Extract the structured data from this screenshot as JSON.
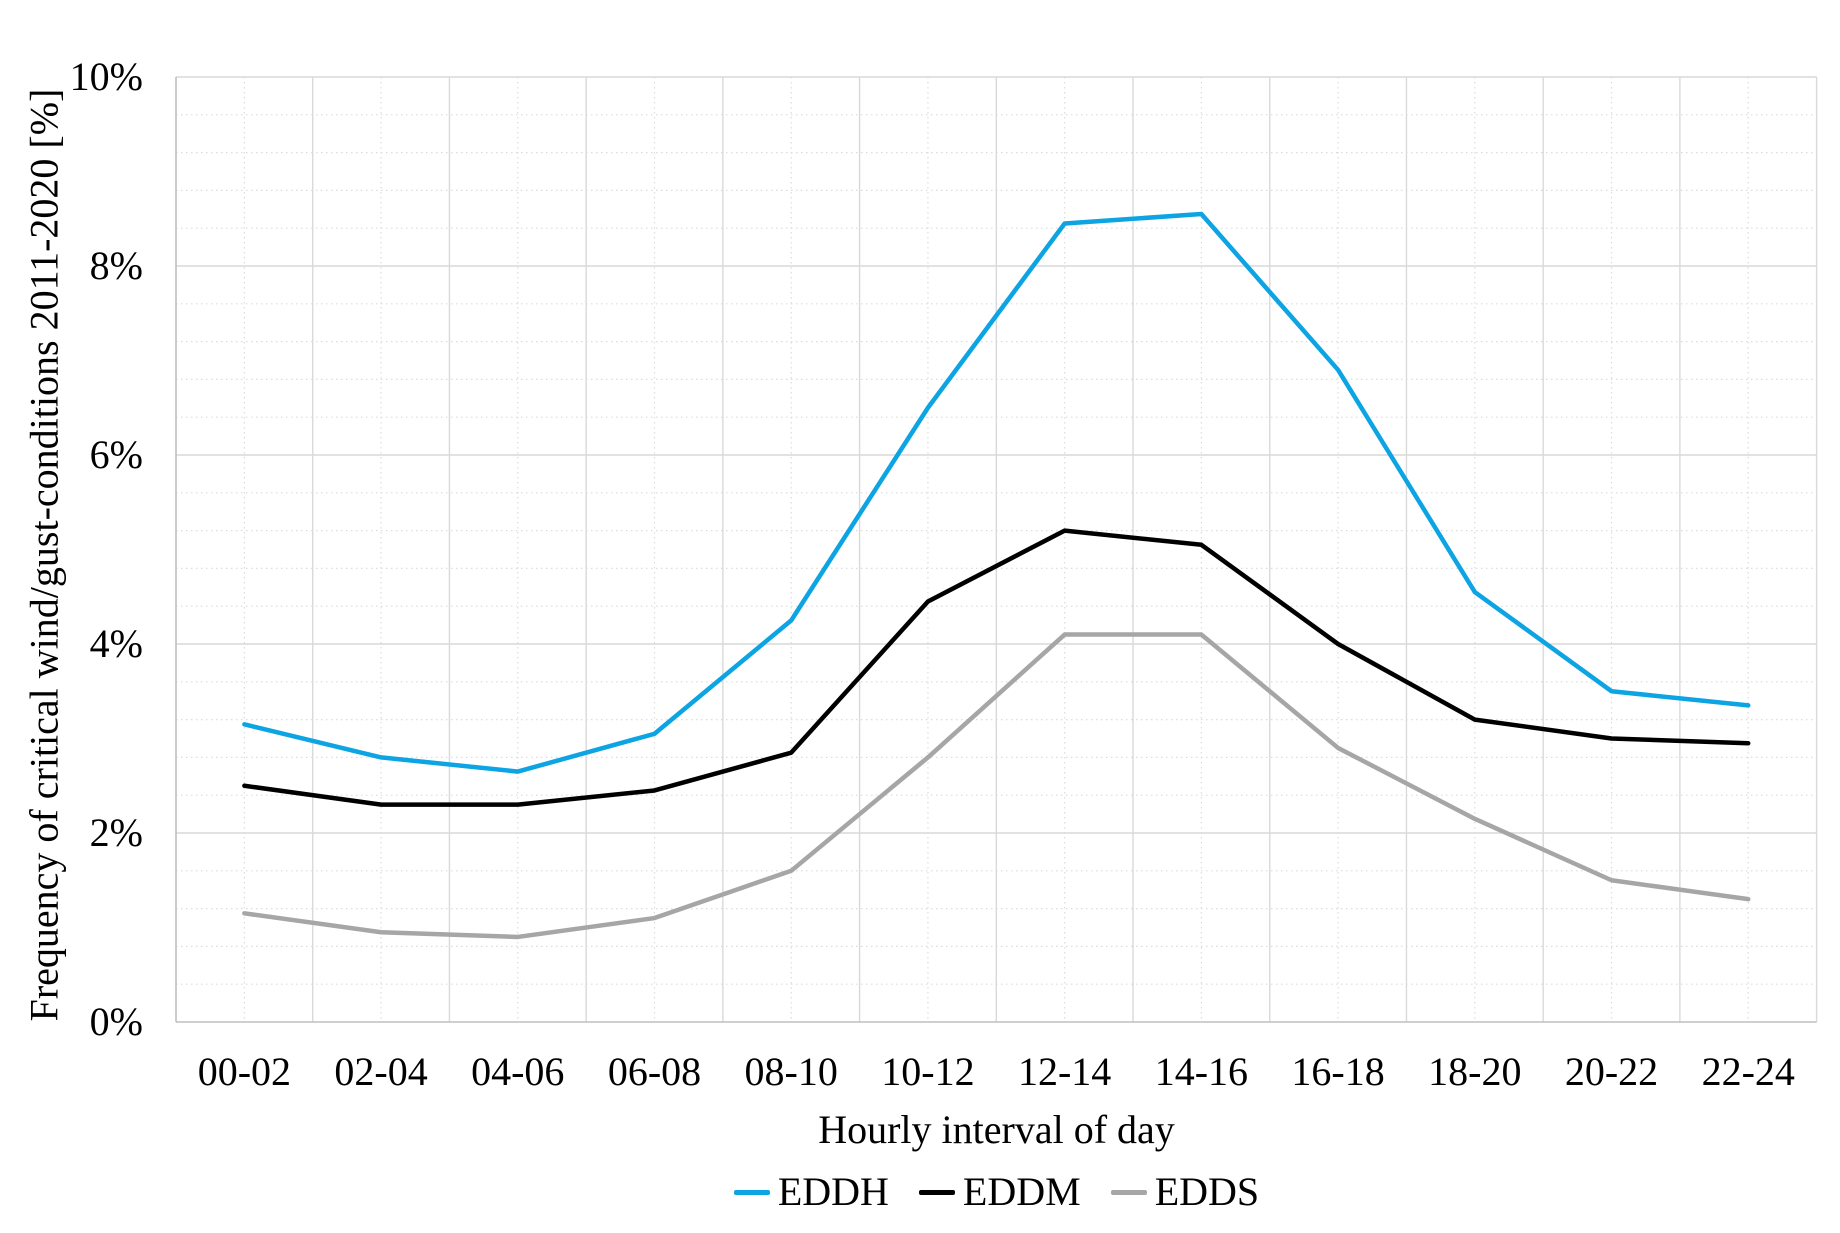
{
  "chart_data": {
    "type": "line",
    "title": "",
    "xlabel": "Hourly interval of day",
    "ylabel": "Frequency of critical wind/gust-conditions 2011-2020 [%]",
    "categories": [
      "00-02",
      "02-04",
      "04-06",
      "06-08",
      "08-10",
      "10-12",
      "12-14",
      "14-16",
      "16-18",
      "18-20",
      "20-22",
      "22-24"
    ],
    "series": [
      {
        "name": "EDDH",
        "color": "#0ca4e2",
        "values": [
          3.15,
          2.8,
          2.65,
          3.05,
          4.25,
          6.5,
          8.45,
          8.55,
          6.9,
          4.55,
          3.5,
          3.35
        ]
      },
      {
        "name": "EDDM",
        "color": "#000000",
        "values": [
          2.5,
          2.3,
          2.3,
          2.45,
          2.85,
          4.45,
          5.2,
          5.05,
          4.0,
          3.2,
          3.0,
          2.95
        ]
      },
      {
        "name": "EDDS",
        "color": "#a6a6a6",
        "values": [
          1.15,
          0.95,
          0.9,
          1.1,
          1.6,
          2.8,
          4.1,
          4.1,
          2.9,
          2.15,
          1.5,
          1.3
        ]
      }
    ],
    "y_ticks": [
      "0%",
      "2%",
      "4%",
      "6%",
      "8%",
      "10%"
    ],
    "ylim": [
      0,
      10
    ],
    "y_major_step": 2,
    "y_minor_step": 0.4,
    "grid": "major-solid, minor-dotted, vertical-half-category",
    "legend_position": "bottom"
  },
  "style_colors": {
    "major_grid": "#d9d9d9",
    "minor_grid": "#dcdcdc",
    "axis_line": "#bfbfbf"
  }
}
